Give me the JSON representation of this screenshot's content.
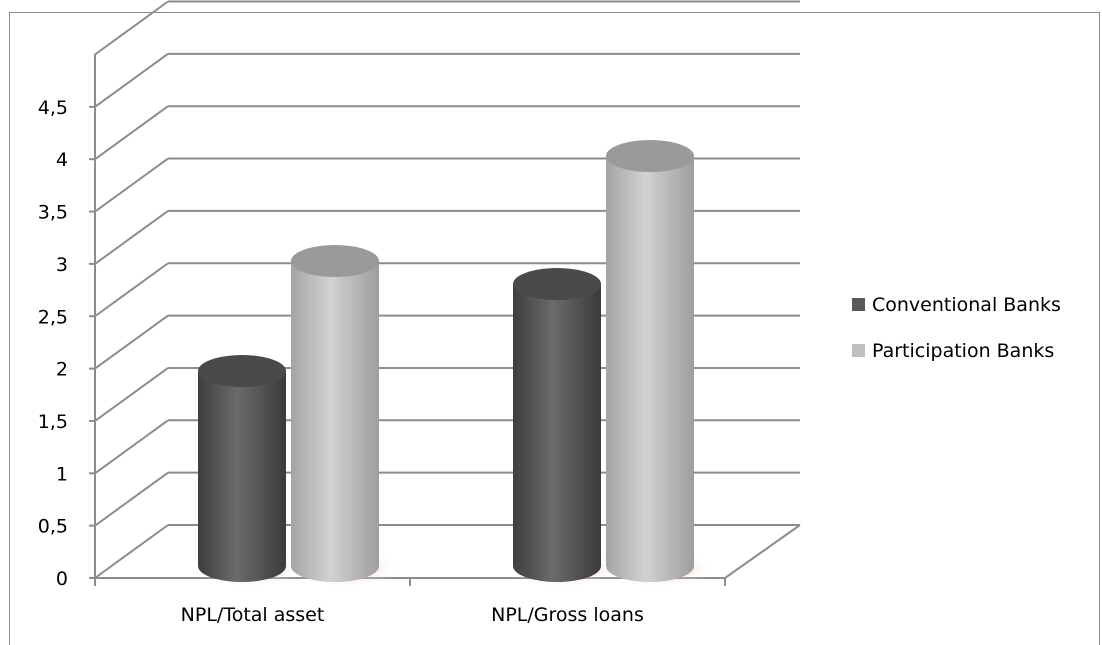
{
  "chart_data": {
    "type": "bar",
    "style": "3d-cylinder",
    "categories": [
      "NPL/Total asset",
      "NPL/Gross loans"
    ],
    "series": [
      {
        "name": "Conventional Banks",
        "values": [
          1.95,
          2.82
        ],
        "color": "#595959"
      },
      {
        "name": "Participation Banks",
        "values": [
          3.05,
          4.1
        ],
        "color": "#bfbfbf"
      }
    ],
    "yticks": [
      "0",
      "0,5",
      "1",
      "1,5",
      "2",
      "2,5",
      "3",
      "3,5",
      "4",
      "4,5"
    ],
    "ylim": [
      0,
      4.5
    ],
    "grid": true,
    "legend": "right"
  }
}
